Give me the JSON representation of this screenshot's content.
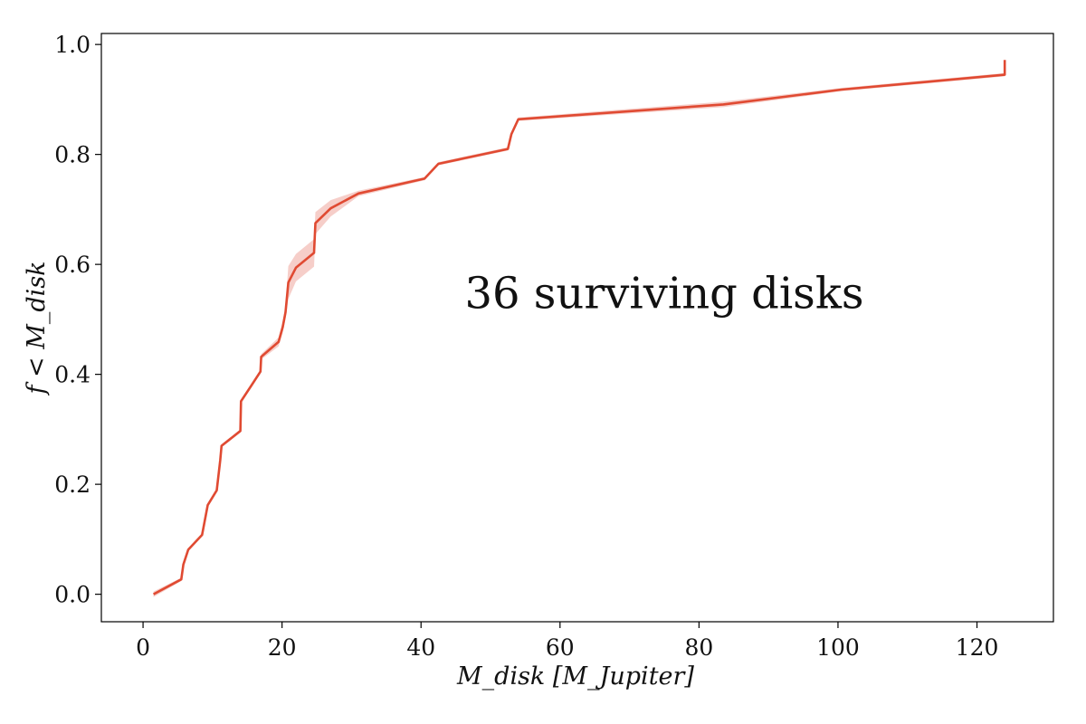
{
  "chart_data": {
    "type": "line",
    "xlabel": "M_disk [M_Jupiter]",
    "ylabel": "f < M_disk",
    "xlim": [
      -6,
      131
    ],
    "ylim": [
      -0.05,
      1.02
    ],
    "xticks": [
      0,
      20,
      40,
      60,
      80,
      100,
      120
    ],
    "yticks": [
      0.0,
      0.2,
      0.4,
      0.6,
      0.8,
      1.0
    ],
    "xtick_labels": [
      "0",
      "20",
      "40",
      "60",
      "80",
      "100",
      "120"
    ],
    "ytick_labels": [
      "0.0",
      "0.2",
      "0.4",
      "0.6",
      "0.8",
      "1.0"
    ],
    "grid": false,
    "annotations": [
      {
        "text": "36 surviving disks",
        "x": 75,
        "y": 0.52
      }
    ],
    "colors": {
      "line": "#e04a32",
      "band": "#f4c2bb"
    },
    "series": [
      {
        "x": [
          1.5,
          5.5,
          5.8,
          6.5,
          8.5,
          9.3,
          10.6,
          11.1,
          11.3,
          14.0,
          14.1,
          15.5,
          16.9,
          17.0,
          19.5,
          20.1,
          20.5,
          20.9,
          22.0,
          24.6,
          24.8,
          27.0,
          31.0,
          40.5,
          42.5,
          52.5,
          53.0,
          54.0,
          83.5,
          100.5,
          124.0,
          124.0
        ],
        "y": [
          0.0,
          0.027,
          0.054,
          0.081,
          0.108,
          0.162,
          0.189,
          0.243,
          0.27,
          0.297,
          0.351,
          0.378,
          0.405,
          0.432,
          0.459,
          0.486,
          0.513,
          0.567,
          0.594,
          0.621,
          0.675,
          0.702,
          0.729,
          0.756,
          0.783,
          0.81,
          0.837,
          0.864,
          0.891,
          0.918,
          0.945,
          0.972
        ],
        "band_halfwidth": [
          0.005,
          0.003,
          0.003,
          0.003,
          0.003,
          0.003,
          0.003,
          0.003,
          0.003,
          0.003,
          0.003,
          0.003,
          0.004,
          0.005,
          0.008,
          0.01,
          0.012,
          0.03,
          0.025,
          0.025,
          0.02,
          0.015,
          0.005,
          0.003,
          0.003,
          0.003,
          0.003,
          0.003,
          0.005,
          0.003,
          0.003,
          0.003
        ]
      }
    ]
  }
}
